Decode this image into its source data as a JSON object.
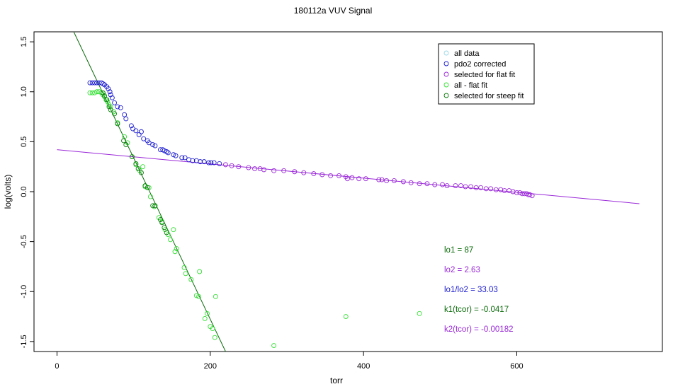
{
  "chart_data": {
    "type": "scatter",
    "title": "180112a   VUV Signal",
    "xlabel": "torr",
    "ylabel": "log(volts)",
    "xlim": [
      -30,
      790
    ],
    "ylim": [
      -1.6,
      1.6
    ],
    "xticks": [
      0,
      200,
      400,
      600
    ],
    "yticks": [
      -1.5,
      -1.0,
      -0.5,
      0.0,
      0.5,
      1.0,
      1.5
    ],
    "xtick_labels": [
      "0",
      "200",
      "400",
      "600"
    ],
    "ytick_labels": [
      "-1.5",
      "-1.0",
      "-0.5",
      "0.0",
      "0.5",
      "1.0",
      "1.5"
    ],
    "grid": false,
    "legend_position": "top-right",
    "colors": {
      "all_data": "#9ad7e6",
      "pdo2": "#1c1cd0",
      "flat": "#9a28d8",
      "all_minus_flat": "#33e033",
      "steep": "#0a7a0a",
      "flat_fit_line": "#9a28d8",
      "steep_fit_line": "#0a6a0a",
      "ann_lo1": "#0a6a0a",
      "ann_lo2": "#9a28d8",
      "ann_ratio": "#1c1cd0",
      "ann_k1": "#0a6a0a",
      "ann_k2": "#9a28d8"
    },
    "series": [
      {
        "name": "pdo2 corrected",
        "color_key": "pdo2",
        "points": [
          [
            43,
            1.09
          ],
          [
            46,
            1.09
          ],
          [
            49,
            1.09
          ],
          [
            52,
            1.09
          ],
          [
            55,
            1.09
          ],
          [
            58,
            1.09
          ],
          [
            60,
            1.08
          ],
          [
            62,
            1.07
          ],
          [
            65,
            1.05
          ],
          [
            67,
            1.03
          ],
          [
            69,
            1.0
          ],
          [
            70,
            0.97
          ],
          [
            72,
            0.94
          ],
          [
            75,
            0.89
          ],
          [
            79,
            0.85
          ],
          [
            83,
            0.84
          ],
          [
            88,
            0.77
          ],
          [
            90,
            0.73
          ],
          [
            97,
            0.66
          ],
          [
            99,
            0.63
          ],
          [
            103,
            0.61
          ],
          [
            107,
            0.57
          ],
          [
            110,
            0.6
          ],
          [
            113,
            0.53
          ],
          [
            118,
            0.51
          ],
          [
            120,
            0.49
          ],
          [
            125,
            0.47
          ],
          [
            128,
            0.46
          ],
          [
            135,
            0.42
          ],
          [
            138,
            0.42
          ],
          [
            140,
            0.41
          ],
          [
            143,
            0.4
          ],
          [
            145,
            0.39
          ],
          [
            152,
            0.37
          ],
          [
            155,
            0.36
          ],
          [
            163,
            0.34
          ],
          [
            167,
            0.34
          ],
          [
            172,
            0.32
          ],
          [
            177,
            0.31
          ],
          [
            182,
            0.31
          ],
          [
            187,
            0.3
          ],
          [
            192,
            0.3
          ],
          [
            198,
            0.29
          ],
          [
            201,
            0.29
          ],
          [
            205,
            0.29
          ],
          [
            212,
            0.28
          ]
        ]
      },
      {
        "name": "selected for flat fit",
        "color_key": "flat",
        "points": [
          [
            220,
            0.27
          ],
          [
            228,
            0.26
          ],
          [
            237,
            0.25
          ],
          [
            250,
            0.24
          ],
          [
            258,
            0.23
          ],
          [
            265,
            0.23
          ],
          [
            270,
            0.22
          ],
          [
            283,
            0.21
          ],
          [
            296,
            0.21
          ],
          [
            310,
            0.2
          ],
          [
            322,
            0.19
          ],
          [
            335,
            0.18
          ],
          [
            346,
            0.17
          ],
          [
            357,
            0.16
          ],
          [
            368,
            0.16
          ],
          [
            377,
            0.15
          ],
          [
            379,
            0.13
          ],
          [
            385,
            0.14
          ],
          [
            394,
            0.13
          ],
          [
            403,
            0.13
          ],
          [
            420,
            0.12
          ],
          [
            424,
            0.12
          ],
          [
            430,
            0.11
          ],
          [
            440,
            0.11
          ],
          [
            452,
            0.1
          ],
          [
            462,
            0.09
          ],
          [
            473,
            0.08
          ],
          [
            483,
            0.08
          ],
          [
            493,
            0.07
          ],
          [
            503,
            0.07
          ],
          [
            509,
            0.06
          ],
          [
            520,
            0.06
          ],
          [
            527,
            0.06
          ],
          [
            533,
            0.05
          ],
          [
            540,
            0.05
          ],
          [
            547,
            0.04
          ],
          [
            553,
            0.04
          ],
          [
            560,
            0.03
          ],
          [
            566,
            0.03
          ],
          [
            573,
            0.02
          ],
          [
            579,
            0.02
          ],
          [
            584,
            0.01
          ],
          [
            590,
            0.01
          ],
          [
            595,
            0.0
          ],
          [
            600,
            -0.01
          ],
          [
            604,
            -0.01
          ],
          [
            607,
            -0.02
          ],
          [
            610,
            -0.02
          ],
          [
            613,
            -0.02
          ],
          [
            615,
            -0.03
          ],
          [
            617,
            -0.03
          ],
          [
            620,
            -0.04
          ]
        ]
      },
      {
        "name": "all - flat fit",
        "color_key": "all_minus_flat",
        "points": [
          [
            43,
            0.99
          ],
          [
            46,
            0.99
          ],
          [
            49,
            0.99
          ],
          [
            52,
            1.0
          ],
          [
            55,
            1.0
          ],
          [
            58,
            0.99
          ],
          [
            60,
            0.97
          ],
          [
            62,
            0.95
          ],
          [
            64,
            0.92
          ],
          [
            66,
            0.9
          ],
          [
            68,
            0.87
          ],
          [
            70,
            0.85
          ],
          [
            74,
            0.8
          ],
          [
            79,
            0.69
          ],
          [
            88,
            0.55
          ],
          [
            92,
            0.49
          ],
          [
            98,
            0.35
          ],
          [
            103,
            0.27
          ],
          [
            108,
            0.21
          ],
          [
            112,
            0.25
          ],
          [
            115,
            0.05
          ],
          [
            120,
            0.04
          ],
          [
            122,
            -0.05
          ],
          [
            127,
            -0.15
          ],
          [
            133,
            -0.26
          ],
          [
            137,
            -0.3
          ],
          [
            141,
            -0.38
          ],
          [
            145,
            -0.43
          ],
          [
            148,
            -0.48
          ],
          [
            152,
            -0.38
          ],
          [
            154,
            -0.6
          ],
          [
            156,
            -0.57
          ],
          [
            166,
            -0.76
          ],
          [
            168,
            -0.82
          ],
          [
            175,
            -0.88
          ],
          [
            182,
            -1.04
          ],
          [
            185,
            -1.05
          ],
          [
            186,
            -0.8
          ],
          [
            193,
            -1.27
          ],
          [
            196,
            -1.22
          ],
          [
            200,
            -1.35
          ],
          [
            203,
            -1.37
          ],
          [
            206,
            -1.46
          ],
          [
            207,
            -1.05
          ],
          [
            283,
            -1.54
          ],
          [
            377,
            -1.25
          ],
          [
            473,
            -1.22
          ]
        ]
      },
      {
        "name": "selected for steep fit",
        "color_key": "steep",
        "points": [
          [
            60,
            0.99
          ],
          [
            62,
            0.96
          ],
          [
            65,
            0.92
          ],
          [
            68,
            0.85
          ],
          [
            70,
            0.82
          ],
          [
            75,
            0.78
          ],
          [
            79,
            0.68
          ],
          [
            87,
            0.51
          ],
          [
            90,
            0.47
          ],
          [
            98,
            0.35
          ],
          [
            103,
            0.28
          ],
          [
            106,
            0.23
          ],
          [
            110,
            0.19
          ],
          [
            115,
            0.06
          ],
          [
            118,
            0.04
          ],
          [
            125,
            -0.14
          ],
          [
            128,
            -0.14
          ],
          [
            135,
            -0.28
          ],
          [
            137,
            -0.31
          ],
          [
            140,
            -0.36
          ],
          [
            143,
            -0.41
          ]
        ]
      }
    ],
    "fit_lines": [
      {
        "color_key": "flat_fit_line",
        "x": [
          0,
          760
        ],
        "y": [
          0.42,
          -0.12
        ]
      },
      {
        "color_key": "steep_fit_line",
        "x": [
          20,
          220
        ],
        "y": [
          1.63,
          -1.6
        ]
      }
    ],
    "legend": [
      {
        "label": "all data",
        "color_key": "all_data"
      },
      {
        "label": "pdo2 corrected",
        "color_key": "pdo2"
      },
      {
        "label": "selected for flat fit",
        "color_key": "flat"
      },
      {
        "label": "all - flat fit",
        "color_key": "all_minus_flat"
      },
      {
        "label": "selected for steep fit",
        "color_key": "steep"
      }
    ],
    "annotations": [
      {
        "text": "lo1 = 87",
        "color_key": "ann_lo1"
      },
      {
        "text": "lo2 = 2.63",
        "color_key": "ann_lo2"
      },
      {
        "text": "lo1/lo2 = 33.03",
        "color_key": "ann_ratio"
      },
      {
        "text": "k1(tcor) = -0.0417",
        "color_key": "ann_k1"
      },
      {
        "text": "k2(tcor) = -0.00182",
        "color_key": "ann_k2"
      }
    ]
  }
}
